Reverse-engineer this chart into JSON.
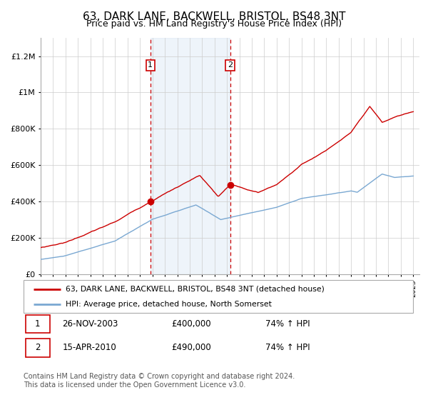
{
  "title": "63, DARK LANE, BACKWELL, BRISTOL, BS48 3NT",
  "subtitle": "Price paid vs. HM Land Registry's House Price Index (HPI)",
  "title_fontsize": 11,
  "subtitle_fontsize": 9,
  "hpi_line_color": "#7aa8d2",
  "property_line_color": "#cc0000",
  "shade_color": "#ddeeff",
  "vline_color": "#cc0000",
  "ylim": [
    0,
    1300000
  ],
  "yticks": [
    0,
    200000,
    400000,
    600000,
    800000,
    1000000,
    1200000
  ],
  "ytick_labels": [
    "£0",
    "£200K",
    "£400K",
    "£600K",
    "£800K",
    "£1M",
    "£1.2M"
  ],
  "legend_property_label": "63, DARK LANE, BACKWELL, BRISTOL, BS48 3NT (detached house)",
  "legend_hpi_label": "HPI: Average price, detached house, North Somerset",
  "table_rows": [
    {
      "num": "1",
      "date": "26-NOV-2003",
      "price": "£400,000",
      "hpi": "74% ↑ HPI"
    },
    {
      "num": "2",
      "date": "15-APR-2010",
      "price": "£490,000",
      "hpi": "74% ↑ HPI"
    }
  ],
  "footer": "Contains HM Land Registry data © Crown copyright and database right 2024.\nThis data is licensed under the Open Government Licence v3.0.",
  "background_color": "#ffffff",
  "grid_color": "#cccccc"
}
